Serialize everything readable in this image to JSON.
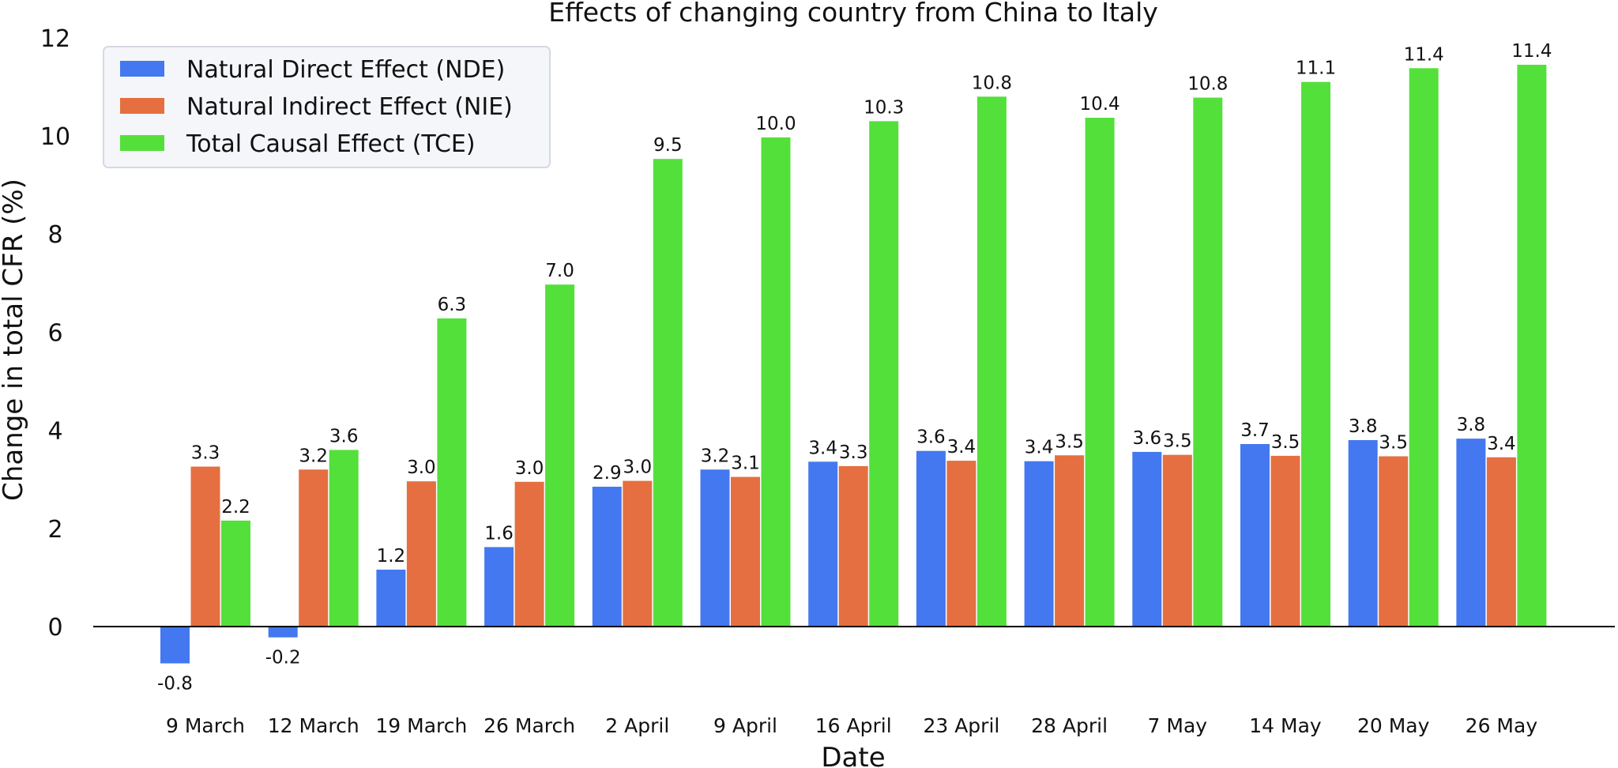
{
  "chart_data": {
    "type": "bar",
    "title": "Effects of changing country from China to Italy",
    "xlabel": "Date",
    "ylabel": "Change in total CFR (%)",
    "ylim": [
      -1.5,
      12.3
    ],
    "yticks": [
      0,
      2,
      4,
      6,
      8,
      10,
      12
    ],
    "grid": false,
    "legend_position": "top-left",
    "categories": [
      "9 March",
      "12 March",
      "19 March",
      "26 March",
      "2 April",
      "9 April",
      "16 April",
      "23 April",
      "28 April",
      "7 May",
      "14 May",
      "20 May",
      "26 May"
    ],
    "series": [
      {
        "name": "Natural Direct Effect (NDE)",
        "color": "#4378f0",
        "values": [
          -0.75,
          -0.22,
          1.16,
          1.62,
          2.85,
          3.2,
          3.36,
          3.58,
          3.37,
          3.56,
          3.72,
          3.8,
          3.83
        ],
        "labels": [
          "-0.8",
          "-0.2",
          "1.2",
          "1.6",
          "2.9",
          "3.2",
          "3.4",
          "3.6",
          "3.4",
          "3.6",
          "3.7",
          "3.8",
          "3.8"
        ]
      },
      {
        "name": "Natural Indirect Effect (NIE)",
        "color": "#e56f40",
        "values": [
          3.26,
          3.2,
          2.96,
          2.95,
          2.97,
          3.05,
          3.27,
          3.38,
          3.49,
          3.5,
          3.48,
          3.47,
          3.45
        ],
        "labels": [
          "3.3",
          "3.2",
          "3.0",
          "3.0",
          "3.0",
          "3.1",
          "3.3",
          "3.4",
          "3.5",
          "3.5",
          "3.5",
          "3.5",
          "3.4"
        ]
      },
      {
        "name": "Total Causal Effect (TCE)",
        "color": "#53e03a",
        "values": [
          2.16,
          3.6,
          6.28,
          6.97,
          9.53,
          9.97,
          10.3,
          10.8,
          10.37,
          10.78,
          11.1,
          11.38,
          11.45
        ],
        "labels": [
          "2.2",
          "3.6",
          "6.3",
          "7.0",
          "9.5",
          "10.0",
          "10.3",
          "10.8",
          "10.4",
          "10.8",
          "11.1",
          "11.4",
          "11.4"
        ]
      }
    ]
  }
}
